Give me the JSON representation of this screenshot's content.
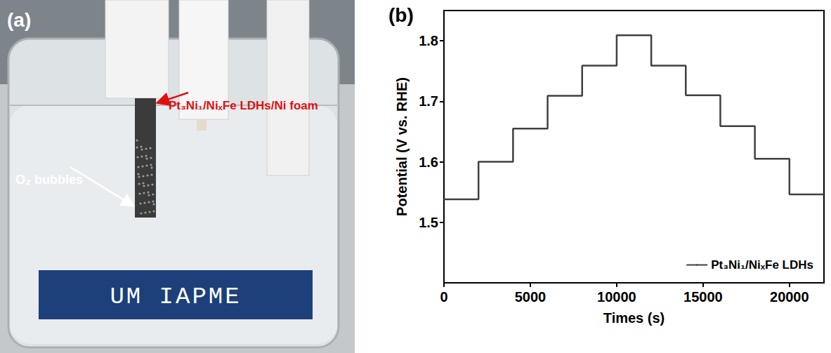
{
  "photo": {
    "letter": "(a)",
    "annotations": [
      "Pt₃Ni₁/NiₓFe LDHs/Ni foam",
      "O₂ bubbles"
    ],
    "sign": "UM IAPME"
  },
  "chart_data": {
    "type": "line",
    "letter": "(b)",
    "xlabel": "Times (s)",
    "ylabel": "Potential (V vs. RHE)",
    "x": [
      0,
      2000,
      4000,
      6000,
      8000,
      10000,
      12000,
      14000,
      16000,
      18000,
      20000,
      22000
    ],
    "series": [
      {
        "name": "Pt₃Ni₁/NiₓFe LDHs",
        "color": "#404040",
        "line_style": "step",
        "values": [
          1.538,
          1.6,
          1.655,
          1.709,
          1.759,
          1.809,
          1.759,
          1.71,
          1.659,
          1.605,
          1.546,
          1.546
        ]
      }
    ],
    "xlim": [
      0,
      22000
    ],
    "xticks": [
      0,
      5000,
      10000,
      15000,
      20000
    ],
    "ylim": [
      1.4,
      1.85
    ],
    "yticks": [
      1.5,
      1.6,
      1.7,
      1.8
    ],
    "grid": false,
    "legend": "lower right"
  }
}
